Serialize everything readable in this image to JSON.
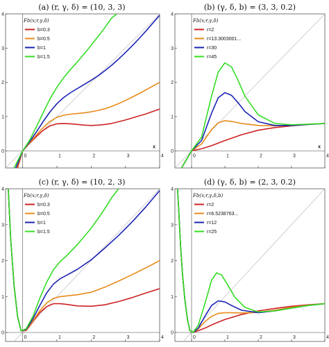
{
  "chart_data": [
    {
      "type": "line",
      "title": "(a) (r, γ, δ) = (10, 3, 3)",
      "legend_title": "Fb(x;r,γ,δ)",
      "xlabel": "x",
      "ylabel": "",
      "xlim": [
        -0.5,
        4
      ],
      "ylim": [
        -0.5,
        4
      ],
      "x_ticks": [
        "0",
        "1",
        "2",
        "3",
        "4"
      ],
      "y_ticks": [
        "0",
        "1",
        "2",
        "3",
        "4"
      ],
      "legend_position": "top-left",
      "diagonal_reference": true,
      "series": [
        {
          "name": "b=0.3",
          "color": "#cc2222",
          "x": [
            -0.15,
            0,
            0.2,
            0.4,
            0.6,
            0.8,
            1.0,
            1.2,
            1.4,
            1.6,
            1.8,
            2.0,
            2.2,
            2.4,
            2.6,
            2.8,
            3.0,
            3.2,
            3.4,
            3.6,
            3.8,
            4.0
          ],
          "y": [
            -0.5,
            0,
            0.22,
            0.42,
            0.6,
            0.73,
            0.79,
            0.8,
            0.79,
            0.77,
            0.75,
            0.74,
            0.75,
            0.77,
            0.8,
            0.85,
            0.9,
            0.96,
            1.02,
            1.08,
            1.15,
            1.22
          ]
        },
        {
          "name": "b=0.5",
          "color": "#e88a1a",
          "x": [
            -0.17,
            0,
            0.2,
            0.4,
            0.6,
            0.8,
            1.0,
            1.2,
            1.4,
            1.6,
            1.8,
            2.0,
            2.2,
            2.4,
            2.6,
            2.8,
            3.0,
            3.2,
            3.4,
            3.6,
            3.8,
            4.0
          ],
          "y": [
            -0.5,
            0,
            0.23,
            0.46,
            0.68,
            0.86,
            0.98,
            1.04,
            1.07,
            1.09,
            1.11,
            1.14,
            1.18,
            1.23,
            1.3,
            1.38,
            1.47,
            1.57,
            1.67,
            1.78,
            1.89,
            2.0
          ]
        },
        {
          "name": "b=1",
          "color": "#1a22b3",
          "x": [
            -0.2,
            0,
            0.2,
            0.4,
            0.6,
            0.8,
            1.0,
            1.2,
            1.4,
            1.6,
            1.8,
            2.0,
            2.2,
            2.4,
            2.6,
            2.8,
            3.0,
            3.2,
            3.4,
            3.6,
            3.8,
            4.0
          ],
          "y": [
            -0.5,
            0,
            0.26,
            0.55,
            0.86,
            1.14,
            1.38,
            1.56,
            1.7,
            1.82,
            1.94,
            2.06,
            2.19,
            2.34,
            2.5,
            2.68,
            2.87,
            3.07,
            3.28,
            3.5,
            3.73,
            3.96
          ]
        },
        {
          "name": "b=1.5",
          "color": "#33dd22",
          "x": [
            -0.25,
            0,
            0.2,
            0.4,
            0.6,
            0.8,
            1.0,
            1.2,
            1.4,
            1.6,
            1.8,
            2.0,
            2.2,
            2.4,
            2.6,
            2.75
          ],
          "y": [
            -0.5,
            0,
            0.3,
            0.7,
            1.12,
            1.52,
            1.86,
            2.14,
            2.38,
            2.6,
            2.84,
            3.08,
            3.34,
            3.6,
            3.88,
            4.0
          ]
        }
      ]
    },
    {
      "type": "line",
      "title": "(b) (γ, δ, b) = (3, 3, 0.2)",
      "legend_title": "Fb(x;r,γ,δ)",
      "xlabel": "x",
      "ylabel": "",
      "xlim": [
        -0.5,
        4
      ],
      "ylim": [
        -0.5,
        4
      ],
      "x_ticks": [
        "0",
        "1",
        "2",
        "3",
        "4"
      ],
      "y_ticks": [
        "0",
        "1",
        "2",
        "3",
        "4"
      ],
      "legend_position": "top-left",
      "diagonal_reference": true,
      "series": [
        {
          "name": "r=2",
          "color": "#cc2222",
          "x": [
            -0.3,
            0,
            0.3,
            0.6,
            1.0,
            1.5,
            2.0,
            2.5,
            3.0,
            3.5,
            4.0
          ],
          "y": [
            -0.5,
            0,
            0.06,
            0.15,
            0.3,
            0.47,
            0.6,
            0.68,
            0.73,
            0.77,
            0.8
          ]
        },
        {
          "name": "r=13.3003001...",
          "color": "#e88a1a",
          "x": [
            -0.3,
            0,
            0.3,
            0.6,
            0.8,
            1.0,
            1.2,
            1.5,
            2.0,
            2.5,
            3.0,
            3.5,
            4.0
          ],
          "y": [
            -0.5,
            0,
            0.2,
            0.62,
            0.82,
            0.88,
            0.86,
            0.8,
            0.74,
            0.73,
            0.75,
            0.78,
            0.8
          ]
        },
        {
          "name": "r=30",
          "color": "#1a22b3",
          "x": [
            -0.3,
            0,
            0.3,
            0.6,
            0.8,
            1.0,
            1.2,
            1.4,
            1.6,
            2.0,
            2.5,
            3.0,
            3.5,
            4.0
          ],
          "y": [
            -0.5,
            0,
            0.3,
            1.1,
            1.55,
            1.7,
            1.62,
            1.4,
            1.15,
            0.85,
            0.74,
            0.74,
            0.77,
            0.8
          ]
        },
        {
          "name": "r=45",
          "color": "#33dd22",
          "x": [
            -0.3,
            0,
            0.3,
            0.6,
            0.8,
            1.0,
            1.2,
            1.4,
            1.6,
            2.0,
            2.5,
            3.0,
            3.5,
            4.0
          ],
          "y": [
            -0.5,
            0,
            0.4,
            1.6,
            2.3,
            2.57,
            2.45,
            2.05,
            1.6,
            1.05,
            0.8,
            0.76,
            0.78,
            0.8
          ]
        }
      ]
    },
    {
      "type": "line",
      "title": "(c) (r, γ, δ) = (10, 2, 3)",
      "legend_title": "Fb(x;r,γ,δ)",
      "xlabel": "",
      "ylabel": "",
      "xlim": [
        -0.5,
        4
      ],
      "ylim": [
        -0.25,
        4
      ],
      "x_ticks": [
        "0",
        "1",
        "2",
        "3",
        "4"
      ],
      "y_ticks": [
        "0",
        "1",
        "2",
        "3",
        "4"
      ],
      "legend_position": "top-left",
      "diagonal_reference": true,
      "series": [
        {
          "name": "b=0.3",
          "color": "#cc2222",
          "x": [
            -0.42,
            -0.35,
            -0.25,
            -0.15,
            -0.05,
            0.1,
            0.3,
            0.5,
            0.7,
            0.9,
            1.1,
            1.3,
            1.6,
            2.0,
            2.4,
            2.8,
            3.2,
            3.6,
            4.0
          ],
          "y": [
            4.0,
            2.6,
            1.3,
            0.45,
            0.05,
            0.05,
            0.3,
            0.55,
            0.72,
            0.8,
            0.8,
            0.78,
            0.74,
            0.73,
            0.77,
            0.86,
            0.97,
            1.1,
            1.22
          ]
        },
        {
          "name": "b=0.5",
          "color": "#e88a1a",
          "x": [
            -0.42,
            -0.35,
            -0.25,
            -0.15,
            -0.05,
            0.1,
            0.3,
            0.5,
            0.7,
            0.9,
            1.1,
            1.3,
            1.6,
            2.0,
            2.4,
            2.8,
            3.2,
            3.6,
            4.0
          ],
          "y": [
            4.0,
            2.6,
            1.3,
            0.45,
            0.05,
            0.06,
            0.32,
            0.6,
            0.82,
            0.95,
            1.0,
            1.02,
            1.05,
            1.12,
            1.26,
            1.43,
            1.61,
            1.8,
            2.0
          ]
        },
        {
          "name": "b=1",
          "color": "#1a22b3",
          "x": [
            -0.42,
            -0.35,
            -0.25,
            -0.15,
            -0.05,
            0.1,
            0.3,
            0.5,
            0.7,
            0.9,
            1.1,
            1.3,
            1.6,
            2.0,
            2.4,
            2.8,
            3.2,
            3.6,
            4.0
          ],
          "y": [
            4.0,
            2.6,
            1.3,
            0.45,
            0.05,
            0.08,
            0.38,
            0.75,
            1.1,
            1.35,
            1.5,
            1.6,
            1.76,
            2.02,
            2.35,
            2.7,
            3.08,
            3.5,
            3.95
          ]
        },
        {
          "name": "b=1.5",
          "color": "#33dd22",
          "x": [
            -0.42,
            -0.35,
            -0.25,
            -0.15,
            -0.05,
            0.1,
            0.3,
            0.5,
            0.7,
            0.9,
            1.1,
            1.3,
            1.6,
            2.0,
            2.3,
            2.6,
            2.8
          ],
          "y": [
            4.0,
            2.6,
            1.3,
            0.45,
            0.05,
            0.1,
            0.45,
            0.95,
            1.4,
            1.75,
            1.98,
            2.15,
            2.45,
            2.9,
            3.3,
            3.75,
            4.0
          ]
        }
      ]
    },
    {
      "type": "line",
      "title": "(d) (γ, δ, b) = (2, 3, 0.2)",
      "legend_title": "Fb(x;r,γ,δ,b)",
      "xlabel": "",
      "ylabel": "",
      "xlim": [
        -0.5,
        4
      ],
      "ylim": [
        -0.25,
        4
      ],
      "x_ticks": [
        "0",
        "1",
        "2",
        "3",
        "4"
      ],
      "y_ticks": [
        "0",
        "1",
        "2",
        "3",
        "4"
      ],
      "legend_position": "top-left",
      "diagonal_reference": true,
      "series": [
        {
          "name": "r=2",
          "color": "#cc2222",
          "x": [
            -0.42,
            -0.38,
            -0.33,
            -0.27,
            -0.2,
            -0.12,
            -0.05,
            0.05,
            0.2,
            0.4,
            0.7,
            1.0,
            1.5,
            2.0,
            2.5,
            3.0,
            3.5,
            4.0
          ],
          "y": [
            4.0,
            3.3,
            2.4,
            1.6,
            0.9,
            0.35,
            0.05,
            0.0,
            0.05,
            0.12,
            0.25,
            0.36,
            0.5,
            0.6,
            0.67,
            0.73,
            0.77,
            0.8
          ]
        },
        {
          "name": "r=6.5238763...",
          "color": "#e88a1a",
          "x": [
            -0.42,
            -0.38,
            -0.33,
            -0.27,
            -0.2,
            -0.12,
            -0.05,
            0.05,
            0.2,
            0.4,
            0.6,
            0.8,
            1.0,
            1.2,
            1.5,
            2.0,
            2.5,
            3.0,
            3.5,
            4.0
          ],
          "y": [
            4.0,
            3.3,
            2.4,
            1.6,
            0.9,
            0.35,
            0.05,
            0.0,
            0.1,
            0.3,
            0.45,
            0.53,
            0.55,
            0.55,
            0.54,
            0.56,
            0.62,
            0.7,
            0.76,
            0.8
          ]
        },
        {
          "name": "r=12",
          "color": "#1a22b3",
          "x": [
            -0.42,
            -0.38,
            -0.33,
            -0.27,
            -0.2,
            -0.12,
            -0.05,
            0.05,
            0.2,
            0.4,
            0.6,
            0.8,
            1.0,
            1.2,
            1.5,
            2.0,
            2.5,
            3.0,
            3.5,
            4.0
          ],
          "y": [
            4.0,
            3.3,
            2.4,
            1.6,
            0.9,
            0.35,
            0.05,
            0.0,
            0.12,
            0.45,
            0.75,
            0.88,
            0.85,
            0.75,
            0.62,
            0.55,
            0.6,
            0.68,
            0.75,
            0.8
          ]
        },
        {
          "name": "r=25",
          "color": "#33dd22",
          "x": [
            -0.42,
            -0.38,
            -0.33,
            -0.27,
            -0.2,
            -0.12,
            -0.05,
            0.05,
            0.2,
            0.4,
            0.6,
            0.75,
            0.9,
            1.1,
            1.3,
            1.6,
            2.0,
            2.5,
            3.0,
            3.5,
            4.0
          ],
          "y": [
            4.0,
            3.3,
            2.4,
            1.6,
            0.9,
            0.35,
            0.05,
            0.0,
            0.2,
            0.8,
            1.45,
            1.66,
            1.6,
            1.3,
            0.98,
            0.7,
            0.57,
            0.6,
            0.68,
            0.75,
            0.8
          ]
        }
      ]
    }
  ]
}
